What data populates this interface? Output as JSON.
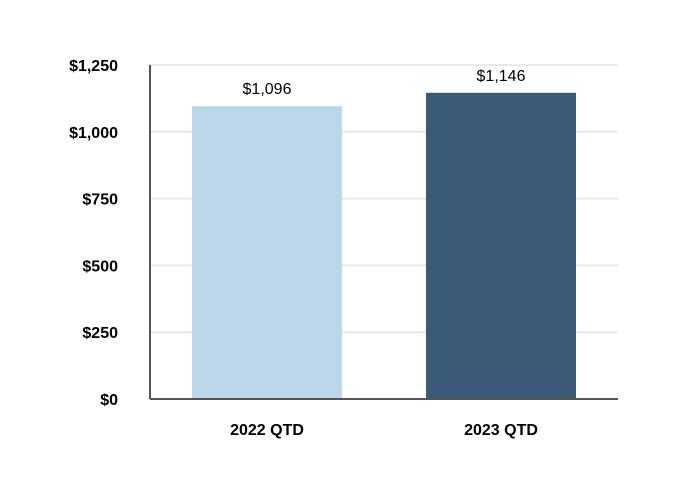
{
  "chart_data": {
    "type": "bar",
    "title": "",
    "xlabel": "",
    "ylabel": "",
    "categories": [
      "2022 QTD",
      "2023 QTD"
    ],
    "values": [
      1096,
      1146
    ],
    "data_labels": [
      "$1,096",
      "$1,146"
    ],
    "bar_colors": [
      "#bdd7ea",
      "#3b5a78"
    ],
    "ylim": [
      0,
      1250
    ],
    "yticks": [
      0,
      250,
      500,
      750,
      1000,
      1250
    ],
    "ytick_labels": [
      "$0",
      "$250",
      "$500",
      "$750",
      "$1,000",
      "$1,250"
    ],
    "grid": true,
    "legend": "none"
  }
}
